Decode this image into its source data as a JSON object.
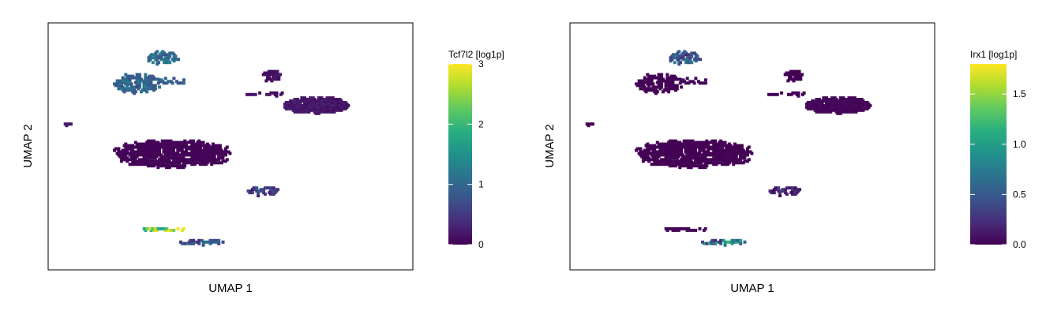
{
  "chart_data": [
    {
      "type": "scatter",
      "title": "",
      "xlabel": "UMAP 1",
      "ylabel": "UMAP 2",
      "ticks_shown": false,
      "grid": false,
      "colormap": "viridis",
      "colorbar": {
        "title": "Tcf7l2 [log1p]",
        "range": [
          0,
          3
        ],
        "ticks": [
          "0",
          "1",
          "2",
          "3"
        ],
        "tick_values": [
          0,
          1,
          2,
          3
        ]
      },
      "clusters": [
        {
          "cx": -4.1,
          "cy": 6.2,
          "rx": 1.0,
          "ry": 0.7,
          "density": 0.6,
          "value": 0.9,
          "spread": 0.35,
          "label": "upper-left top"
        },
        {
          "cx": -5.6,
          "cy": 3.4,
          "rx": 1.4,
          "ry": 1.1,
          "density": 0.7,
          "value": 0.8,
          "spread": 0.3,
          "label": "upper-left main"
        },
        {
          "cx": -3.6,
          "cy": 3.6,
          "rx": 1.0,
          "ry": 0.35,
          "density": 0.35,
          "value": 0.7,
          "spread": 0.25,
          "label": "upper-left arm"
        },
        {
          "cx": 2.5,
          "cy": 4.2,
          "rx": 0.6,
          "ry": 0.7,
          "density": 0.75,
          "value": 0.1,
          "spread": 0.1,
          "label": "right ring"
        },
        {
          "cx": 2.5,
          "cy": 2.2,
          "rx": 1.5,
          "ry": 0.2,
          "density": 0.35,
          "value": 0.1,
          "spread": 0.1,
          "label": "right bridge"
        },
        {
          "cx": 5.2,
          "cy": 1.0,
          "rx": 2.0,
          "ry": 0.9,
          "density": 0.9,
          "value": 0.15,
          "spread": 0.1,
          "label": "right blob"
        },
        {
          "cx": -9.8,
          "cy": -1.2,
          "rx": 0.25,
          "ry": 0.2,
          "density": 0.9,
          "value": 0.2,
          "spread": 0.1,
          "label": "far-left dot"
        },
        {
          "cx": -3.5,
          "cy": -4.3,
          "rx": 3.5,
          "ry": 1.5,
          "density": 0.8,
          "value": 0.02,
          "spread": 0.02,
          "label": "center blob"
        },
        {
          "cx": 1.9,
          "cy": -8.4,
          "rx": 1.0,
          "ry": 0.5,
          "density": 0.6,
          "value": 0.4,
          "spread": 0.3,
          "label": "lower-right small"
        },
        {
          "cx": -4.2,
          "cy": -12.6,
          "rx": 1.6,
          "ry": 0.25,
          "density": 0.6,
          "value": 2.1,
          "spread": 0.8,
          "label": "bottom streak high"
        },
        {
          "cx": -1.7,
          "cy": -14.0,
          "rx": 1.3,
          "ry": 0.3,
          "density": 0.6,
          "value": 0.6,
          "spread": 0.4,
          "label": "bottom streak tail"
        }
      ],
      "xlim": [
        -11,
        11
      ],
      "ylim": [
        -17,
        10
      ]
    },
    {
      "type": "scatter",
      "title": "",
      "xlabel": "UMAP 1",
      "ylabel": "UMAP 2",
      "ticks_shown": false,
      "grid": false,
      "colormap": "viridis",
      "colorbar": {
        "title": "Irx1 [log1p]",
        "range": [
          0,
          1.8
        ],
        "ticks": [
          "0.0",
          "0.5",
          "1.0",
          "1.5"
        ],
        "tick_values": [
          0,
          0.5,
          1.0,
          1.5
        ]
      },
      "clusters": [
        {
          "cx": -4.1,
          "cy": 6.2,
          "rx": 1.0,
          "ry": 0.7,
          "density": 0.6,
          "value": 0.35,
          "spread": 0.3,
          "label": "upper-left top"
        },
        {
          "cx": -5.6,
          "cy": 3.4,
          "rx": 1.4,
          "ry": 1.1,
          "density": 0.7,
          "value": 0.0,
          "spread": 0.02,
          "label": "upper-left main"
        },
        {
          "cx": -3.6,
          "cy": 3.6,
          "rx": 1.0,
          "ry": 0.35,
          "density": 0.35,
          "value": 0.02,
          "spread": 0.02,
          "label": "upper-left arm"
        },
        {
          "cx": 2.5,
          "cy": 4.2,
          "rx": 0.6,
          "ry": 0.7,
          "density": 0.75,
          "value": 0.0,
          "spread": 0.01,
          "label": "right ring"
        },
        {
          "cx": 2.5,
          "cy": 2.2,
          "rx": 1.5,
          "ry": 0.2,
          "density": 0.35,
          "value": 0.0,
          "spread": 0.01,
          "label": "right bridge"
        },
        {
          "cx": 5.2,
          "cy": 1.0,
          "rx": 2.0,
          "ry": 0.9,
          "density": 0.9,
          "value": 0.02,
          "spread": 0.02,
          "label": "right blob"
        },
        {
          "cx": -9.8,
          "cy": -1.2,
          "rx": 0.25,
          "ry": 0.2,
          "density": 0.9,
          "value": 0.0,
          "spread": 0.01,
          "label": "far-left dot"
        },
        {
          "cx": -3.5,
          "cy": -4.3,
          "rx": 3.5,
          "ry": 1.5,
          "density": 0.8,
          "value": 0.0,
          "spread": 0.01,
          "label": "center blob"
        },
        {
          "cx": 1.9,
          "cy": -8.4,
          "rx": 1.0,
          "ry": 0.5,
          "density": 0.6,
          "value": 0.1,
          "spread": 0.15,
          "label": "lower-right small"
        },
        {
          "cx": -4.2,
          "cy": -12.6,
          "rx": 1.6,
          "ry": 0.25,
          "density": 0.6,
          "value": 0.02,
          "spread": 0.02,
          "label": "bottom streak"
        },
        {
          "cx": -1.7,
          "cy": -14.0,
          "rx": 1.3,
          "ry": 0.3,
          "density": 0.6,
          "value": 0.5,
          "spread": 0.5,
          "label": "bottom streak tail"
        }
      ],
      "xlim": [
        -11,
        11
      ],
      "ylim": [
        -17,
        10
      ]
    }
  ]
}
